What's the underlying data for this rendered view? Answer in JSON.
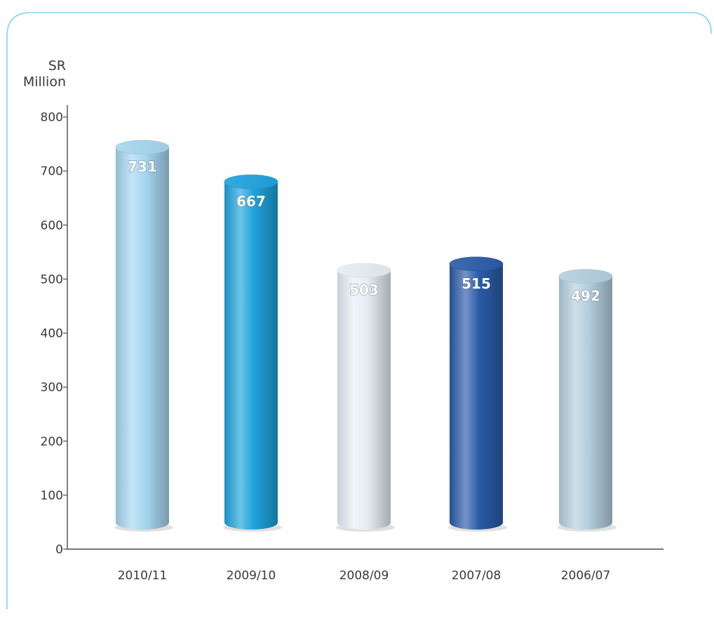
{
  "chart_data": {
    "type": "bar",
    "style": "3d-cylinder",
    "categories": [
      "2010/11",
      "2009/10",
      "2008/09",
      "2007/08",
      "2006/07"
    ],
    "values": [
      731,
      667,
      503,
      515,
      492
    ],
    "data_labels": [
      "731",
      "667",
      "503",
      "515",
      "492"
    ],
    "bar_colors": [
      "#a6d6f0",
      "#1ea2dc",
      "#e6eef4",
      "#2a5ba8",
      "#b3cfdf"
    ],
    "yunit_lines": [
      "SR",
      "Million"
    ],
    "yticks": [
      0,
      100,
      200,
      300,
      400,
      500,
      600,
      700,
      800
    ],
    "ytick_labels": [
      "0",
      "100",
      "200",
      "300",
      "400",
      "500",
      "600",
      "700",
      "800"
    ],
    "ylim": [
      0,
      800
    ],
    "grid": false,
    "legend": "none"
  },
  "colors": {
    "border": "#7fd3ee",
    "axis": "#4a4a4a",
    "text": "#3a3a3a"
  }
}
